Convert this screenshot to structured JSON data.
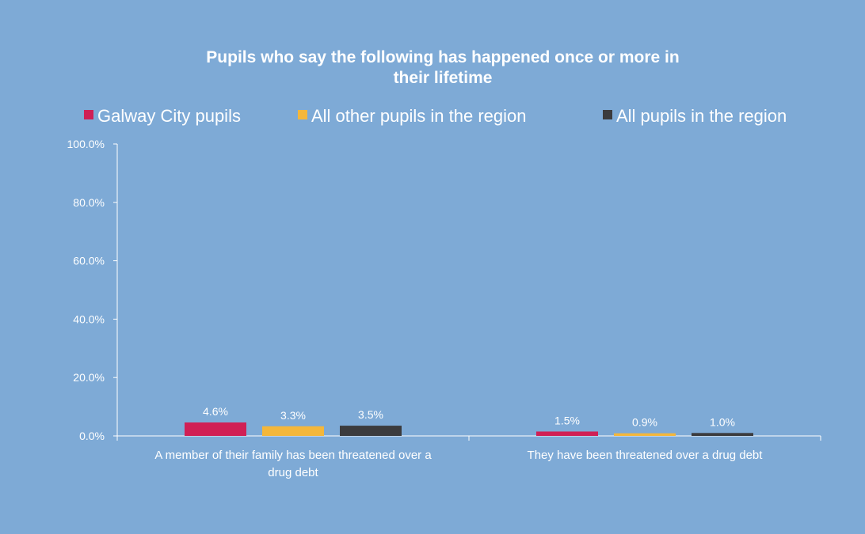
{
  "chart_data": {
    "type": "bar",
    "title": [
      "Pupils who say the following has happened once or more in",
      "their lifetime"
    ],
    "categories": [
      [
        "A member of their family has been threatened over a",
        "drug debt"
      ],
      [
        "They have been threatened over a drug debt"
      ]
    ],
    "series": [
      {
        "name": "Galway City pupils",
        "color": "#d01f55",
        "values": [
          4.6,
          1.5
        ],
        "labels": [
          "4.6%",
          "1.5%"
        ]
      },
      {
        "name": "All other pupils in the region",
        "color": "#f4b73b",
        "values": [
          3.3,
          0.9
        ],
        "labels": [
          "3.3%",
          "0.9%"
        ]
      },
      {
        "name": "All pupils in the region",
        "color": "#3b3b3d",
        "values": [
          3.5,
          1.0
        ],
        "labels": [
          "3.5%",
          "1.0%"
        ]
      }
    ],
    "y_ticks": [
      "0.0%",
      "20.0%",
      "40.0%",
      "60.0%",
      "80.0%",
      "100.0%"
    ],
    "ylim": [
      0,
      100
    ],
    "legend_position": "top",
    "grid": false,
    "background_color": "#7eaad6",
    "axis_color": "#ffffff"
  }
}
